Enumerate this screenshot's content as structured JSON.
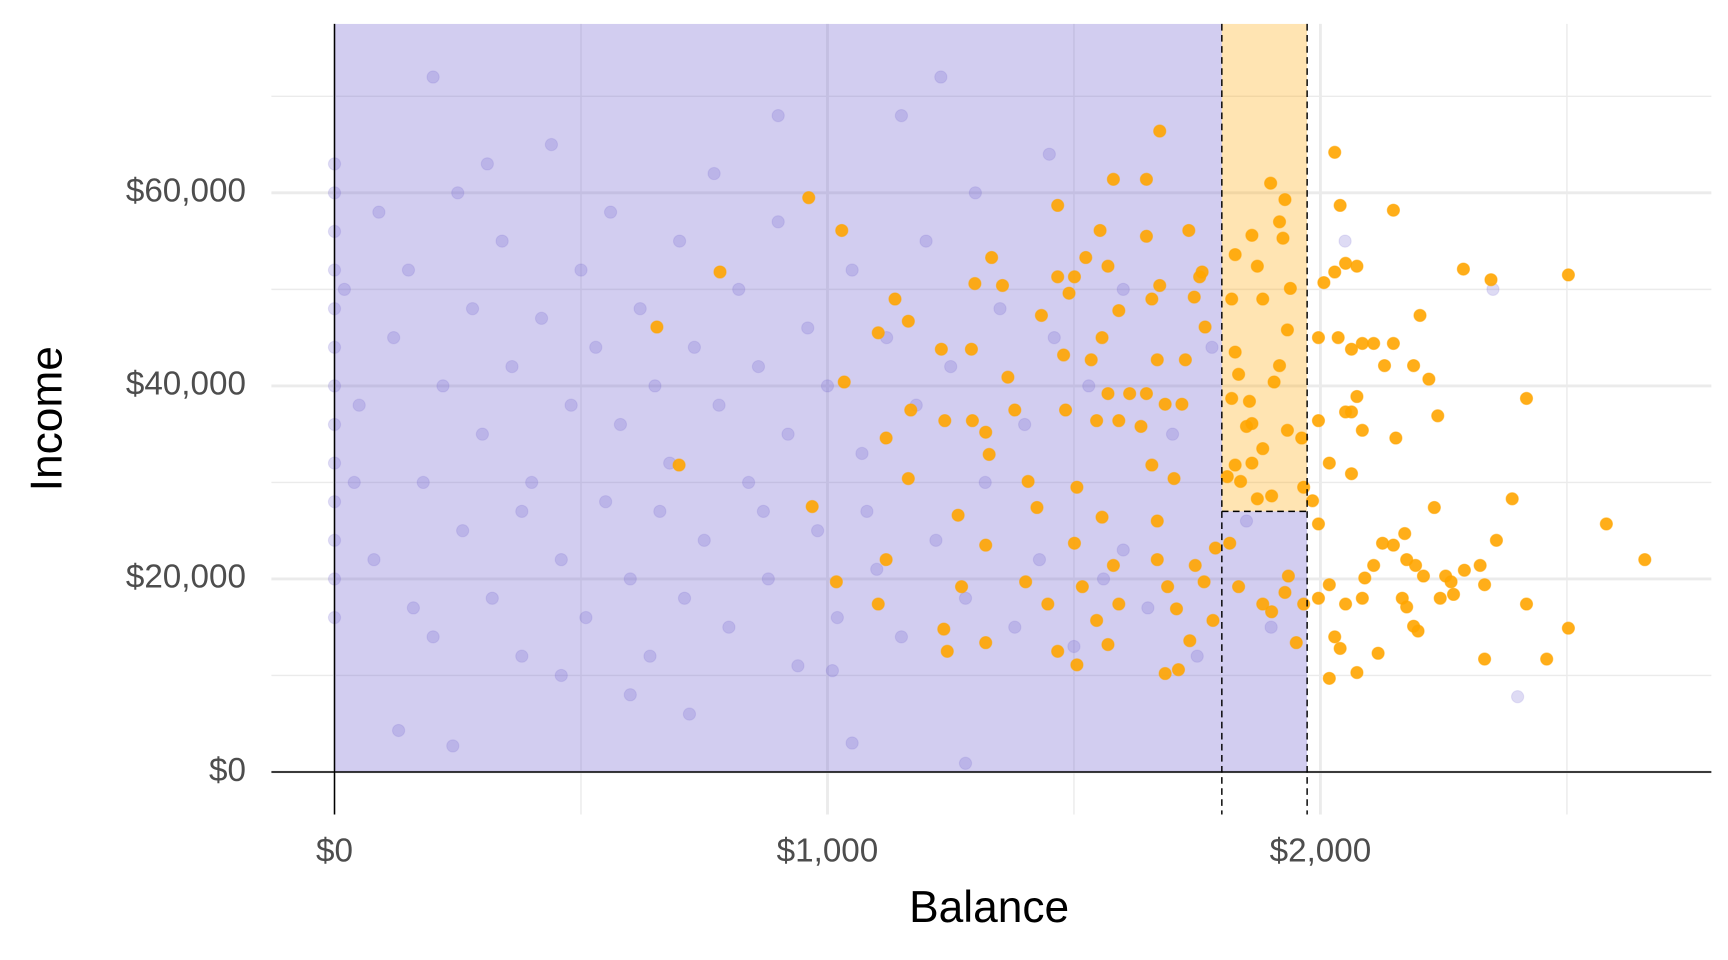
{
  "chart_data": {
    "type": "scatter",
    "x_label": "Balance",
    "y_label": "Income",
    "xlim": [
      -128,
      2793
    ],
    "ylim": [
      -4400,
      77500
    ],
    "xticks": [
      {
        "value": 0,
        "label": "$0"
      },
      {
        "value": 1000,
        "label": "$1,000"
      },
      {
        "value": 2000,
        "label": "$2,000"
      }
    ],
    "yticks": [
      {
        "value": 0,
        "label": "$0"
      },
      {
        "value": 20000,
        "label": "$20,000"
      },
      {
        "value": 40000,
        "label": "$40,000"
      },
      {
        "value": 60000,
        "label": "$60,000"
      }
    ],
    "xminor": [
      500,
      1500,
      2500
    ],
    "yminor": [
      10000,
      30000,
      50000,
      70000
    ],
    "grid": true,
    "regions": [
      {
        "x": [
          0,
          1800
        ],
        "y": [
          0,
          77500
        ],
        "color": "#6a5acd"
      },
      {
        "x": [
          1800,
          1973
        ],
        "y": [
          0,
          27000
        ],
        "color": "#6a5acd"
      },
      {
        "x": [
          1800,
          1973
        ],
        "y": [
          27000,
          77500
        ],
        "color": "#ffa500"
      }
    ],
    "splits": [
      {
        "x": 1800
      },
      {
        "x": 1973
      },
      {
        "y": 27000,
        "x": [
          1800,
          1973
        ]
      }
    ],
    "series": [
      {
        "color": "#6a5acd",
        "opacity": 0.22,
        "x": [
          0,
          0,
          0,
          0,
          0,
          0,
          0,
          0,
          0,
          0,
          0,
          0,
          0,
          50,
          80,
          120,
          150,
          180,
          200,
          220,
          250,
          260,
          280,
          300,
          320,
          340,
          360,
          380,
          400,
          420,
          440,
          460,
          480,
          500,
          510,
          530,
          550,
          560,
          580,
          600,
          620,
          640,
          650,
          680,
          700,
          710,
          730,
          750,
          770,
          780,
          800,
          820,
          840,
          860,
          880,
          900,
          920,
          940,
          960,
          980,
          1000,
          1020,
          1050,
          1070,
          1100,
          1120,
          1150,
          1180,
          1200,
          1220,
          1250,
          1280,
          1300,
          1320,
          1350,
          1380,
          1400,
          1430,
          1460,
          1500,
          1530,
          1560,
          1600,
          1650,
          1700,
          1750,
          1780,
          1850,
          1900,
          2050,
          2350,
          2400,
          130,
          240,
          720,
          1150,
          1050,
          900,
          1280,
          1230,
          200,
          600,
          380,
          660,
          870,
          1080,
          310,
          460,
          1010,
          1450,
          1600,
          20,
          40,
          90,
          160
        ],
        "y": [
          16000,
          20000,
          24000,
          28000,
          32000,
          36000,
          40000,
          44000,
          48000,
          52000,
          56000,
          60000,
          63000,
          38000,
          22000,
          45000,
          52000,
          30000,
          14000,
          40000,
          60000,
          25000,
          48000,
          35000,
          18000,
          55000,
          42000,
          12000,
          30000,
          47000,
          65000,
          22000,
          38000,
          52000,
          16000,
          44000,
          28000,
          58000,
          36000,
          20000,
          48000,
          12000,
          40000,
          32000,
          55000,
          18000,
          44000,
          24000,
          62000,
          38000,
          15000,
          50000,
          30000,
          42000,
          20000,
          57000,
          35000,
          11000,
          46000,
          25000,
          40000,
          16000,
          52000,
          33000,
          21000,
          45000,
          14000,
          38000,
          55000,
          24000,
          42000,
          18000,
          60000,
          30000,
          48000,
          15000,
          36000,
          22000,
          45000,
          13000,
          40000,
          20000,
          50000,
          17000,
          35000,
          12000,
          44000,
          26000,
          15000,
          55000,
          50000,
          7800,
          4300,
          2700,
          6000,
          68000,
          3000,
          68000,
          900,
          72000,
          72000,
          8000,
          27000,
          27000,
          27000,
          27000,
          63000,
          10000,
          10500,
          64000,
          23000,
          50000,
          30000,
          58000,
          17000
        ]
      },
      {
        "color": "#ffa500",
        "opacity": 0.9,
        "x": [
          654,
          699,
          782,
          962,
          969,
          1029,
          1018,
          1034,
          1103,
          1137,
          1164,
          1119,
          1169,
          1164,
          1103,
          1119,
          1231,
          1238,
          1265,
          1272,
          1236,
          1243,
          1292,
          1294,
          1321,
          1333,
          1355,
          1328,
          1299,
          1366,
          1380,
          1321,
          1321,
          1407,
          1434,
          1467,
          1490,
          1467,
          1479,
          1425,
          1402,
          1447,
          1483,
          1467,
          1524,
          1501,
          1506,
          1501,
          1517,
          1506,
          1535,
          1557,
          1569,
          1546,
          1553,
          1569,
          1591,
          1580,
          1591,
          1613,
          1647,
          1636,
          1557,
          1580,
          1591,
          1546,
          1569,
          1647,
          1674,
          1647,
          1674,
          1658,
          1669,
          1685,
          1658,
          1669,
          1669,
          1690,
          1685,
          1712,
          1703,
          1719,
          1726,
          1733,
          1744,
          1755,
          1760,
          1708,
          1735,
          1746,
          1764,
          1782,
          1787,
          1766,
          1827,
          1820,
          1827,
          1834,
          1820,
          1811,
          1827,
          1856,
          1861,
          1850,
          1861,
          1872,
          1883,
          1899,
          1917,
          1928,
          1924,
          1939,
          1933,
          1917,
          1906,
          1883,
          1861,
          1933,
          1962,
          1838,
          1872,
          1901,
          1966,
          1816,
          1834,
          1883,
          1901,
          1928,
          1951,
          1935,
          1966,
          2029,
          2040,
          2007,
          2029,
          2051,
          2074,
          1996,
          2036,
          2063,
          2085,
          2108,
          2148,
          2130,
          2148,
          2202,
          2189,
          2220,
          2074,
          2051,
          2063,
          1996,
          2085,
          2153,
          2018,
          2063,
          2238,
          2290,
          2346,
          2503,
          2418,
          1984,
          1996,
          2231,
          2389,
          2126,
          2148,
          2171,
          2175,
          2193,
          2209,
          2254,
          2265,
          2292,
          2333,
          2324,
          2357,
          2418,
          2580,
          2658,
          2085,
          2051,
          2018,
          1996,
          2166,
          2175,
          2198,
          2189,
          2243,
          2270,
          2117,
          2029,
          2040,
          2018,
          2074,
          2333,
          2459,
          2503,
          2090,
          2108
        ],
        "y": [
          46100,
          31800,
          51800,
          59500,
          27500,
          56100,
          19700,
          40400,
          45500,
          49000,
          46700,
          34600,
          37500,
          30400,
          17400,
          22000,
          43800,
          36400,
          26600,
          19200,
          14800,
          12500,
          43800,
          36400,
          35200,
          53300,
          50400,
          32900,
          50600,
          40900,
          37500,
          23500,
          13400,
          30100,
          47300,
          51300,
          49600,
          12500,
          43200,
          27400,
          19700,
          17400,
          37500,
          58700,
          53300,
          51300,
          29500,
          23700,
          19200,
          11100,
          42700,
          45000,
          39200,
          36400,
          56100,
          52400,
          47800,
          61400,
          36400,
          39200,
          39200,
          35800,
          26400,
          21400,
          17400,
          15700,
          13200,
          61400,
          66400,
          55500,
          50400,
          49000,
          42700,
          38100,
          31800,
          26000,
          22000,
          19200,
          10200,
          10600,
          30400,
          38100,
          42700,
          56100,
          49200,
          51300,
          51800,
          16900,
          13600,
          21400,
          19700,
          15700,
          23200,
          46100,
          53600,
          49000,
          43500,
          41200,
          38700,
          30600,
          31800,
          38400,
          36100,
          35800,
          55600,
          52400,
          49000,
          61000,
          57000,
          59300,
          55300,
          50100,
          45800,
          42100,
          40400,
          33500,
          32000,
          35400,
          34600,
          30100,
          28300,
          28600,
          29500,
          23700,
          19200,
          17400,
          16600,
          18600,
          13400,
          20300,
          17400,
          64200,
          58700,
          50700,
          51800,
          52700,
          52400,
          45000,
          45000,
          43800,
          44400,
          44400,
          44400,
          42100,
          58200,
          47300,
          42100,
          40700,
          38900,
          37300,
          37300,
          36400,
          35400,
          34600,
          32000,
          30900,
          36900,
          52100,
          51000,
          51500,
          38700,
          28100,
          25700,
          27400,
          28300,
          23700,
          23500,
          24700,
          22000,
          21400,
          20300,
          20300,
          19700,
          20900,
          19400,
          21400,
          24000,
          17400,
          25700,
          22000,
          18000,
          17400,
          19400,
          18000,
          18000,
          17100,
          14600,
          15100,
          18000,
          18400,
          12300,
          14000,
          12800,
          9700,
          10300,
          11700,
          11700,
          14900,
          20100,
          21400
        ]
      }
    ]
  }
}
